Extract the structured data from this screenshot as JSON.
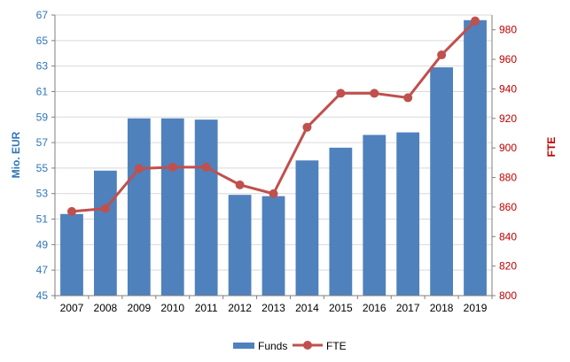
{
  "chart_data": {
    "type": "bar+line",
    "categories": [
      "2007",
      "2008",
      "2009",
      "2010",
      "2011",
      "2012",
      "2013",
      "2014",
      "2015",
      "2016",
      "2017",
      "2018",
      "2019"
    ],
    "series": [
      {
        "name": "Funds",
        "type": "bar",
        "axis": "left",
        "color": "#4F81BD",
        "values": [
          51.4,
          54.8,
          58.9,
          58.9,
          58.8,
          52.9,
          52.8,
          55.6,
          56.6,
          57.6,
          57.8,
          62.9,
          66.6
        ]
      },
      {
        "name": "FTE",
        "type": "line",
        "axis": "right",
        "color": "#C0504D",
        "values": [
          857,
          859,
          886,
          887,
          887,
          875,
          869,
          914,
          937,
          937,
          934,
          963,
          986
        ]
      }
    ],
    "ylabel_left": "Mio. EUR",
    "ylabel_right": "FTE",
    "ylim_left": [
      45,
      67
    ],
    "ylim_right": [
      800,
      990
    ],
    "yticks_left": [
      "45",
      "47",
      "49",
      "51",
      "53",
      "55",
      "57",
      "59",
      "61",
      "63",
      "65",
      "67"
    ],
    "yticks_right": [
      "800",
      "820",
      "840",
      "860",
      "880",
      "900",
      "920",
      "940",
      "960",
      "980"
    ],
    "left_axis_color": "#2E75B6",
    "right_axis_color": "#C00000",
    "grid": "horizontal",
    "legend_position": "bottom",
    "legend": [
      "Funds",
      "FTE"
    ]
  }
}
